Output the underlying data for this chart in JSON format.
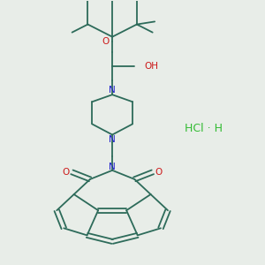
{
  "bg_color": "#e8ede8",
  "bond_color": "#2d6b5a",
  "n_color": "#1a1acc",
  "o_color": "#cc1a1a",
  "salt_color": "#33bb33",
  "figsize": [
    3.0,
    3.0
  ],
  "dpi": 100,
  "salt_text": "HCl · H",
  "oh_text": "OH",
  "o_text": "O",
  "n_text": "N"
}
